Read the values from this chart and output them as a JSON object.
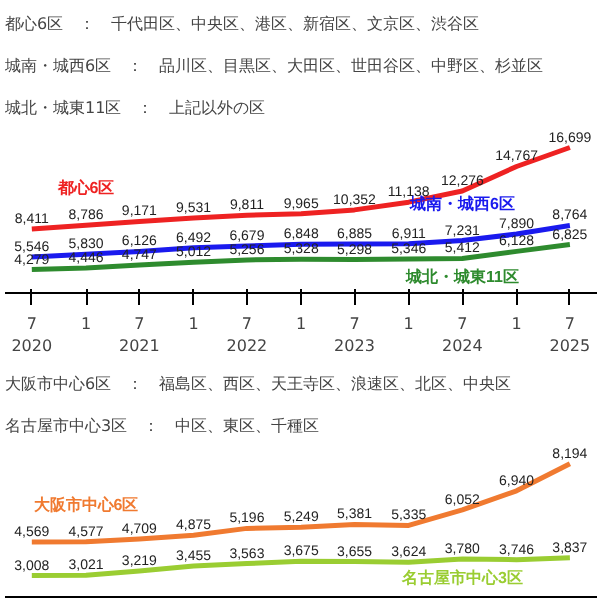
{
  "chart_data": [
    {
      "type": "line",
      "x": [
        "2020-07",
        "2021-01",
        "2021-07",
        "2022-01",
        "2022-07",
        "2023-01",
        "2023-07",
        "2024-01",
        "2024-07",
        "2025-01",
        "2025-07"
      ],
      "annotations": [
        "都心6区　：　千代田区、中央区、港区、新宿区、文京区、渋谷区",
        "城南・城西6区　：　品川区、目黒区、大田区、世田谷区、中野区、杉並区",
        "城北・城東11区　：　上記以外の区"
      ],
      "series": [
        {
          "name": "都心6区",
          "color": "#ee2222",
          "values": [
            8411,
            8786,
            9171,
            9531,
            9811,
            9965,
            10352,
            11138,
            12276,
            14767,
            16699
          ],
          "value_labels": [
            "8,411",
            "8,786",
            "9,171",
            "9,531",
            "9,811",
            "9,965",
            "10,352",
            "11,138",
            "12,276",
            "14,767",
            "16,699"
          ]
        },
        {
          "name": "城南・城西6区",
          "color": "#1a1aee",
          "values": [
            5546,
            5830,
            6126,
            6492,
            6679,
            6848,
            6885,
            6911,
            7231,
            7890,
            8764
          ],
          "value_labels": [
            "5,546",
            "5,830",
            "6,126",
            "6,492",
            "6,679",
            "6,848",
            "6,885",
            "6,911",
            "7,231",
            "7,890",
            "8,764"
          ]
        },
        {
          "name": "城北・城東11区",
          "color": "#2e8b2e",
          "values": [
            4279,
            4446,
            4747,
            5012,
            5256,
            5328,
            5298,
            5346,
            5412,
            6128,
            6825
          ],
          "value_labels": [
            "4,279",
            "4,446",
            "4,747",
            "5,012",
            "5,256",
            "5,328",
            "5,298",
            "5,346",
            "5,412",
            "6,128",
            "6,825"
          ]
        }
      ],
      "marker": "none",
      "line_style": "solid",
      "xlim": [
        "2020-04",
        "2025-10"
      ],
      "xticks": [
        {
          "value": "2020-07",
          "label": "7\n2020"
        },
        {
          "value": "2021-01",
          "label": "1"
        },
        {
          "value": "2021-07",
          "label": "7\n2021"
        },
        {
          "value": "2022-01",
          "label": "1"
        },
        {
          "value": "2022-07",
          "label": "7\n2022"
        },
        {
          "value": "2023-01",
          "label": "1"
        },
        {
          "value": "2023-07",
          "label": "7\n2023"
        },
        {
          "value": "2024-01",
          "label": "1"
        },
        {
          "value": "2024-07",
          "label": "7\n2024"
        },
        {
          "value": "2025-01",
          "label": "1"
        },
        {
          "value": "2025-07",
          "label": "7\n2025"
        }
      ],
      "tick_labels": "x",
      "grid": false
    },
    {
      "type": "line",
      "x": [
        "2020-07",
        "2021-01",
        "2021-07",
        "2022-01",
        "2022-07",
        "2023-01",
        "2023-07",
        "2024-01",
        "2024-07",
        "2025-01",
        "2025-07"
      ],
      "annotations": [
        "大阪市中心6区　：　福島区、西区、天王寺区、浪速区、北区、中央区",
        "名古屋市中心3区　：　中区、東区、千種区"
      ],
      "series": [
        {
          "name": "大阪市中心6区",
          "color": "#f07a30",
          "values": [
            4569,
            4577,
            4709,
            4875,
            5196,
            5249,
            5381,
            5335,
            6052,
            6940,
            8194
          ],
          "value_labels": [
            "4,569",
            "4,577",
            "4,709",
            "4,875",
            "5,196",
            "5,249",
            "5,381",
            "5,335",
            "6,052",
            "6,940",
            "8,194"
          ]
        },
        {
          "name": "名古屋市中心3区",
          "color": "#9acd32",
          "values": [
            3008,
            3021,
            3219,
            3455,
            3563,
            3675,
            3655,
            3624,
            3780,
            3746,
            3837
          ],
          "value_labels": [
            "3,008",
            "3,021",
            "3,219",
            "3,455",
            "3,563",
            "3,675",
            "3,655",
            "3,624",
            "3,780",
            "3,746",
            "3,837"
          ]
        }
      ],
      "marker": "none",
      "line_style": "solid",
      "xlim": [
        "2020-04",
        "2025-10"
      ],
      "tick_labels": false,
      "grid": false
    }
  ]
}
